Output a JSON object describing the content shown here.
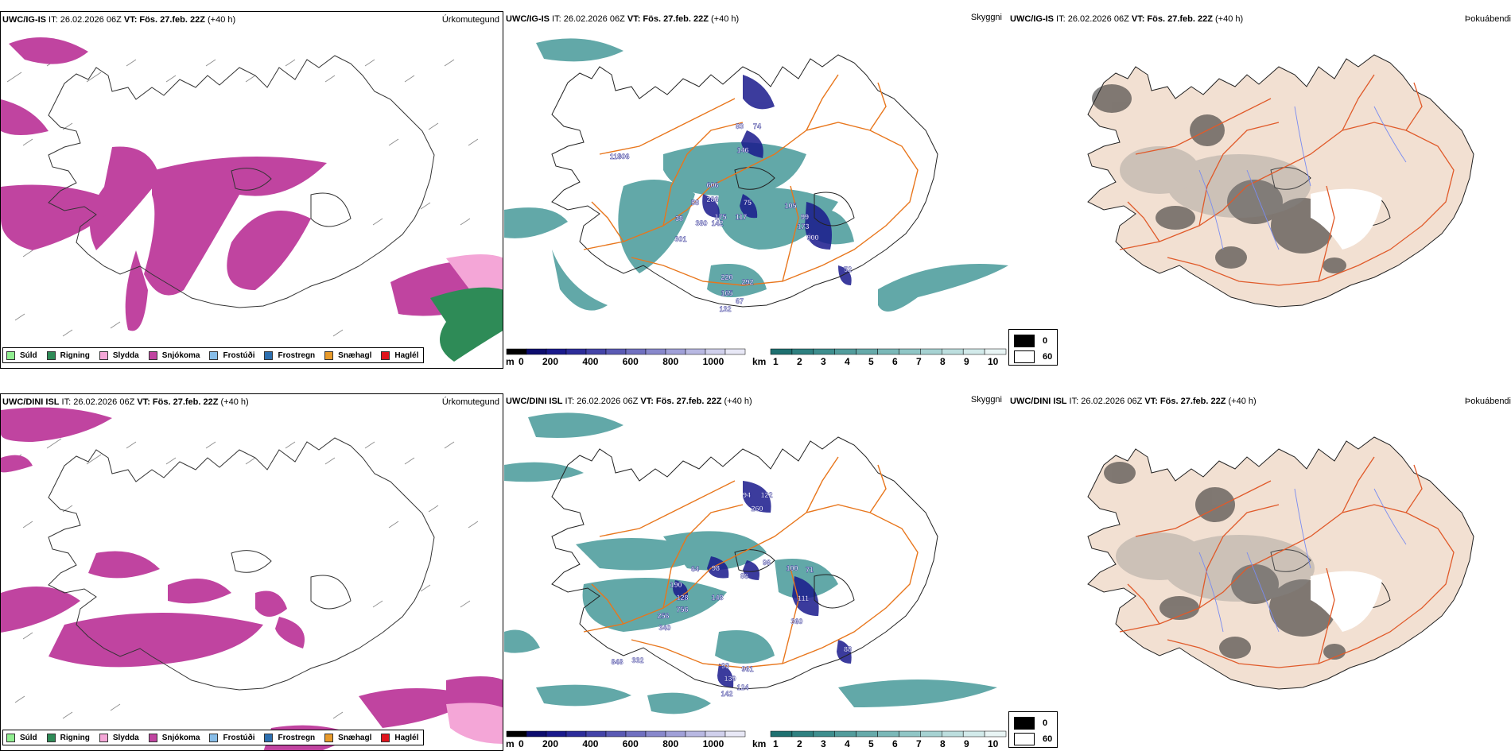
{
  "rows": [
    {
      "precip": {
        "model": "UWC/IG-IS",
        "run": " IT: 26.02.2026 06Z ",
        "vt_label": "VT: Fös. 27.feb. 22Z",
        "lead": " (+40 h)",
        "label": "Úrkomutegund"
      },
      "cloud": {
        "model": "UWC/IG-IS",
        "run": " IT: 26.02.2026 06Z ",
        "vt_label": "VT: Fös. 27.feb. 22Z",
        "lead": " (+40 h)",
        "label": "Skyggni"
      },
      "fog": {
        "model": "UWC/IG-IS",
        "run": " IT: 26.02.2026 06Z ",
        "vt_label": "VT: Fös. 27.feb. 22Z",
        "lead": " (+40 h)",
        "label": "Þokuábendi"
      },
      "cloud_labels": [
        "306",
        "118",
        "83",
        "74",
        "146",
        "606",
        "75",
        "58",
        "286",
        "175",
        "117",
        "105",
        "99",
        "38",
        "380",
        "142",
        "173",
        "900",
        "301",
        "220",
        "292",
        "165",
        "67",
        "132",
        "52"
      ]
    },
    {
      "precip": {
        "model": "UWC/DINI ISL",
        "run": " IT: 26.02.2026 06Z ",
        "vt_label": "VT: Fös. 27.feb. 22Z",
        "lead": " (+40 h)",
        "label": "Úrkomutegund"
      },
      "cloud": {
        "model": "UWC/DINI ISL",
        "run": " IT: 26.02.2026 06Z ",
        "vt_label": "VT: Fös. 27.feb. 22Z",
        "lead": " (+40 h)",
        "label": "Skyggni"
      },
      "fog": {
        "model": "UWC/DINI ISL",
        "run": " IT: 26.02.2026 06Z ",
        "vt_label": "VT: Fös. 27.feb. 22Z",
        "lead": " (+40 h)",
        "label": "Þokuábendi"
      },
      "cloud_labels": [
        "94",
        "122",
        "260",
        "96",
        "64",
        "98",
        "100",
        "71",
        "86",
        "190",
        "148",
        "111",
        "128",
        "756",
        "256",
        "340",
        "360",
        "88",
        "848",
        "332",
        "93",
        "961",
        "139",
        "142",
        "124"
      ]
    }
  ],
  "ptype_legend": [
    {
      "label": "Súld",
      "color": "#90ee90"
    },
    {
      "label": "Rigning",
      "color": "#2e8b57"
    },
    {
      "label": "Slydda",
      "color": "#f4a6d7"
    },
    {
      "label": "Snjókoma",
      "color": "#c044a0"
    },
    {
      "label": "Frostúði",
      "color": "#87bde8"
    },
    {
      "label": "Frostregn",
      "color": "#2c6fb0"
    },
    {
      "label": "Snæhagl",
      "color": "#e89a2a"
    },
    {
      "label": "Haglél",
      "color": "#e0141c"
    }
  ],
  "ceiling_scale": {
    "unit": "m",
    "ticks": [
      "0",
      "200",
      "400",
      "600",
      "800",
      "1000"
    ]
  },
  "visibility_scale": {
    "unit": "km",
    "ticks": [
      "1",
      "2",
      "3",
      "4",
      "5",
      "6",
      "7",
      "8",
      "9",
      "10"
    ]
  },
  "fog_scale": {
    "ticks": [
      "0",
      "60"
    ]
  },
  "colors": {
    "snow": "#c044a0",
    "sleet": "#f4a6d7",
    "rain": "#2e8b57",
    "teal": "#2e8b8b",
    "ceiling": "#1a1a8c",
    "road": "#e8761c",
    "land": "#f2e0d2",
    "fogroad": "#e05a2a",
    "river": "#7a8cf0"
  }
}
